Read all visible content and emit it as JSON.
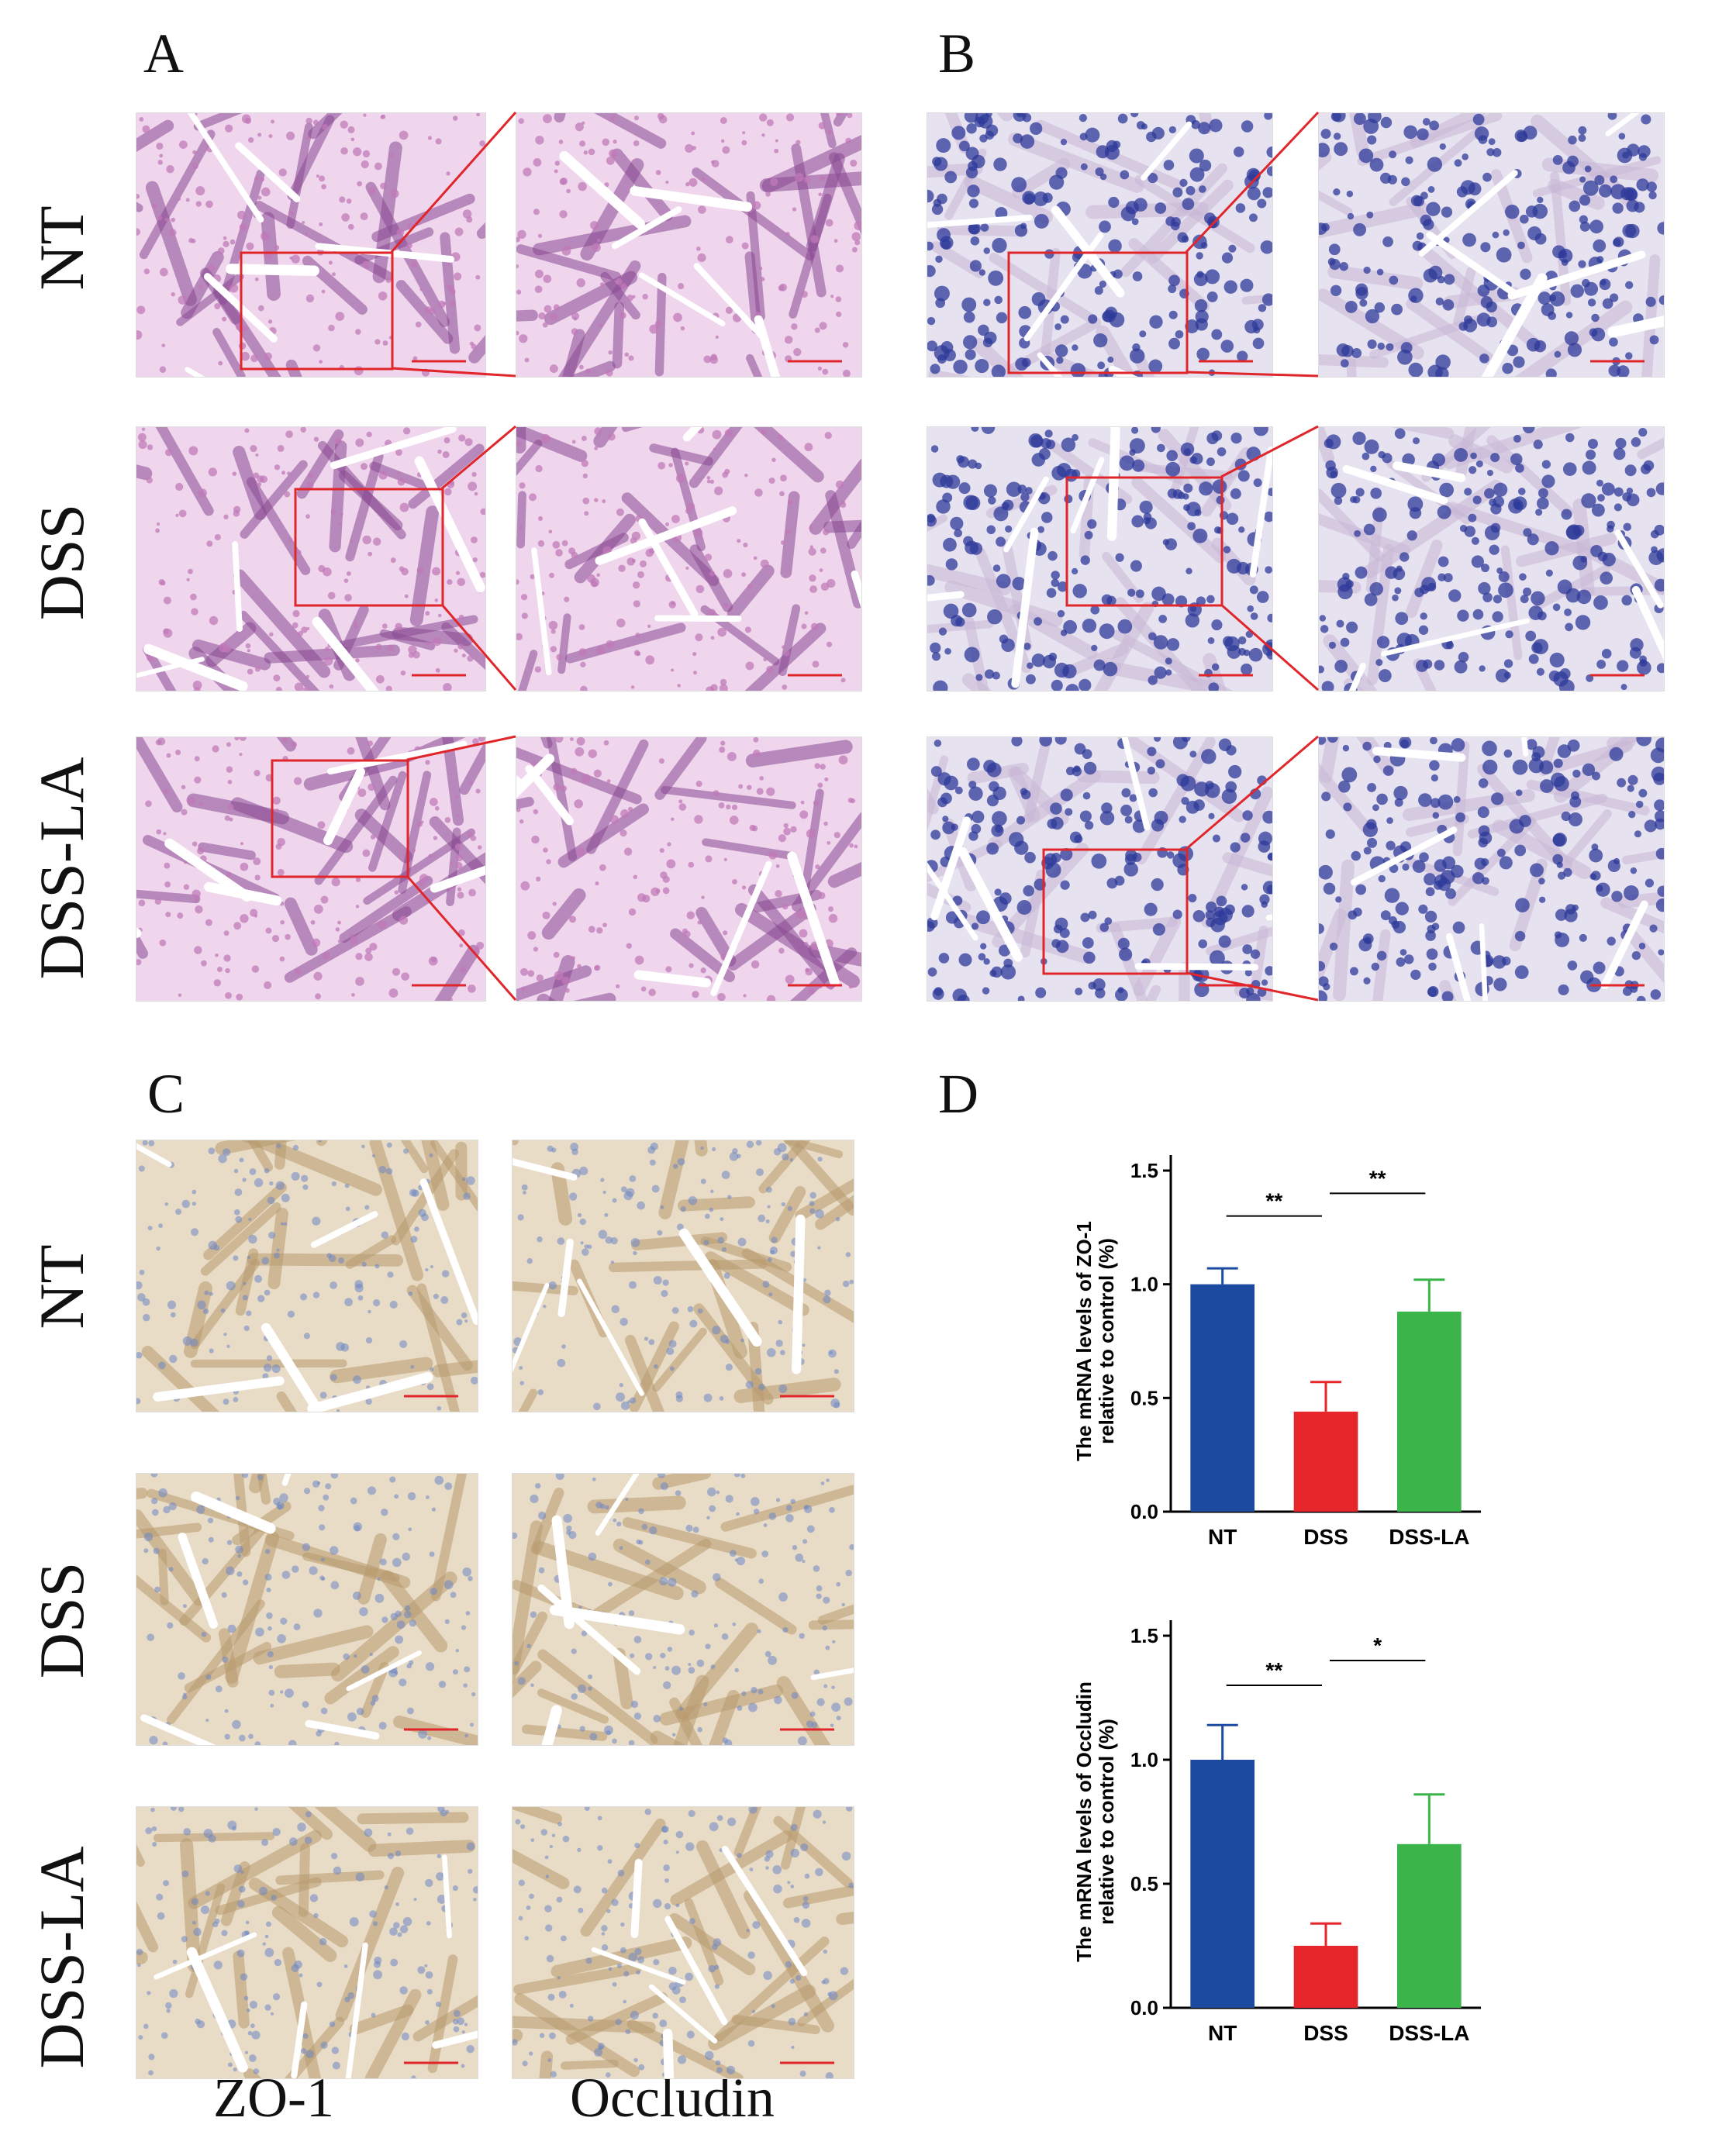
{
  "panels": {
    "A": "A",
    "B": "B",
    "C": "C",
    "D": "D"
  },
  "row_labels": {
    "ab": [
      "NT",
      "DSS",
      "DSS-LA"
    ],
    "c": [
      "NT",
      "DSS",
      "DSS-LA"
    ]
  },
  "col_labels": {
    "c": [
      "ZO-1",
      "Occludin"
    ]
  },
  "colors": {
    "he_stain": "#c07ab8",
    "ab_stain": "#2d3a9a",
    "ihc_bg": "#e9dcc7",
    "zoom_box": "#e0262b",
    "bar_nt": "#1c4aa0",
    "bar_dss": "#e6262b",
    "bar_la": "#3bb44a"
  },
  "chart_data": [
    {
      "type": "bar",
      "categories": [
        "NT",
        "DSS",
        "DSS-LA"
      ],
      "values": [
        1.0,
        0.44,
        0.88
      ],
      "errors": [
        0.07,
        0.13,
        0.14
      ],
      "ylabel": "The mRNA levels of ZO-1 relative to control (%)",
      "ylim": [
        0.0,
        1.5
      ],
      "yticks": [
        "0.0",
        "0.5",
        "1.0",
        "1.5"
      ],
      "significance": [
        {
          "pair": [
            "NT",
            "DSS"
          ],
          "label": "**"
        },
        {
          "pair": [
            "DSS",
            "DSS-LA"
          ],
          "label": "**"
        }
      ],
      "grid": false
    },
    {
      "type": "bar",
      "categories": [
        "NT",
        "DSS",
        "DSS-LA"
      ],
      "values": [
        1.0,
        0.25,
        0.66
      ],
      "errors": [
        0.14,
        0.09,
        0.2
      ],
      "ylabel": "The mRNA levels of Occludin relative to control (%)",
      "ylim": [
        0.0,
        1.5
      ],
      "yticks": [
        "0.0",
        "0.5",
        "1.0",
        "1.5"
      ],
      "significance": [
        {
          "pair": [
            "NT",
            "DSS"
          ],
          "label": "**"
        },
        {
          "pair": [
            "DSS",
            "DSS-LA"
          ],
          "label": "*"
        }
      ],
      "grid": false
    }
  ]
}
